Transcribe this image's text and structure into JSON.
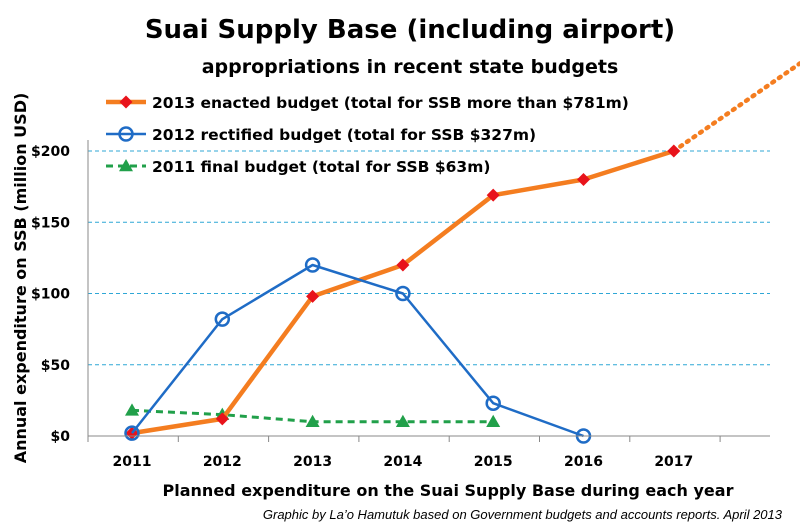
{
  "chart_data": {
    "type": "line",
    "title": "Suai Supply Base (including airport)",
    "subtitle": "appropriations in recent state budgets",
    "xlabel": "Planned expenditure on the Suai Supply Base during each year",
    "ylabel": "Annual expenditure on SSB (million USD)",
    "categories": [
      "2011",
      "2012",
      "2013",
      "2014",
      "2015",
      "2016",
      "2017"
    ],
    "y_ticks": [
      "$0",
      "$50",
      "$100",
      "$150",
      "$200"
    ],
    "ylim": [
      0,
      200
    ],
    "grid": "horizontal dashed",
    "legend_position": "top-left",
    "series": [
      {
        "name": "2013 enacted budget (total for SSB more than $781m)",
        "x": [
          "2011",
          "2012",
          "2013",
          "2014",
          "2015",
          "2016",
          "2017"
        ],
        "values": [
          2,
          12,
          98,
          120,
          169,
          180,
          200
        ],
        "color": "#F47D20",
        "marker": "diamond",
        "marker_color": "#E8131B",
        "line_style": "solid",
        "extension": "dotted continuation beyond 2017"
      },
      {
        "name": "2012 rectified budget (total for SSB $327m)",
        "x": [
          "2011",
          "2012",
          "2013",
          "2014",
          "2015",
          "2016"
        ],
        "values": [
          2,
          82,
          120,
          100,
          23,
          0
        ],
        "color": "#1F6CC6",
        "marker": "open-circle",
        "line_style": "solid"
      },
      {
        "name": "2011 final budget (total for SSB $63m)",
        "x": [
          "2011",
          "2012",
          "2013",
          "2014",
          "2015"
        ],
        "values": [
          18,
          15,
          10,
          10,
          10
        ],
        "color": "#21A04A",
        "marker": "triangle",
        "line_style": "dashed"
      }
    ],
    "annotation": "Graphic by La’o Hamutuk based on Government budgets and accounts reports.   April 2013"
  }
}
